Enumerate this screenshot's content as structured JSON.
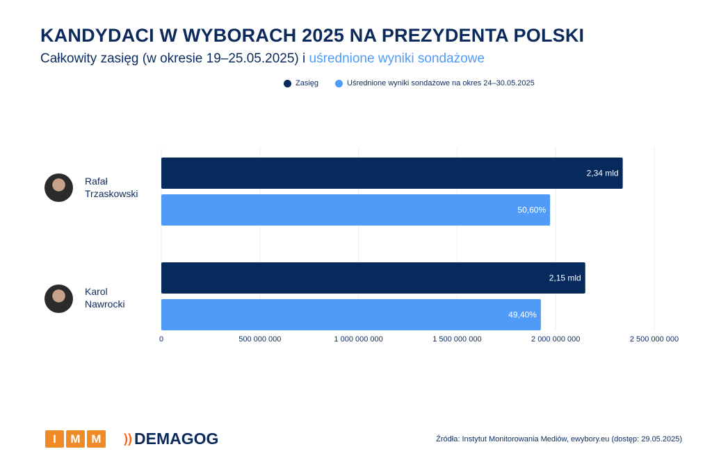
{
  "title": "KANDYDACI W WYBORACH 2025 NA PREZYDENTA POLSKI",
  "subtitle_a": "Całkowity zasięg (w okresie 19–25.05.2025) i",
  "subtitle_b": "uśrednione wyniki sondażowe",
  "footer": {
    "imm_letters": [
      "I",
      "M",
      "M"
    ],
    "demagog": "DEMAGOG",
    "source": "Źródła: Instytut Monitorowania Mediów, ewybory.eu (dostęp: 29.05.2025)"
  },
  "colors": {
    "zasieg": "#062a5c",
    "sondaz": "#4f9bf7"
  },
  "chart_data": {
    "type": "bar",
    "orientation": "horizontal",
    "categories": [
      "Rafał Trzaskowski",
      "Karol Nawrocki"
    ],
    "category_lines": [
      [
        "Rafał",
        "Trzaskowski"
      ],
      [
        "Karol",
        "Nawrocki"
      ]
    ],
    "series": [
      {
        "name": "Zasięg",
        "values": [
          2340000000,
          2150000000
        ],
        "labels": [
          "2,34 mld",
          "2,15 mld"
        ]
      },
      {
        "name": "Uśrednione wyniki sondażowe na okres 24–30.05.2025",
        "values": [
          50.6,
          49.4
        ],
        "labels": [
          "50,60%",
          "49,40%"
        ]
      }
    ],
    "xlim": [
      0,
      2500000000
    ],
    "xticks": [
      0,
      500000000,
      1000000000,
      1500000000,
      2000000000,
      2500000000
    ],
    "xtick_labels": [
      "0",
      "500 000 000",
      "1 000 000 000",
      "1 500 000 000",
      "2 000 000 000",
      "2 500 000 000"
    ],
    "grid": "vertical",
    "legend": "top"
  }
}
